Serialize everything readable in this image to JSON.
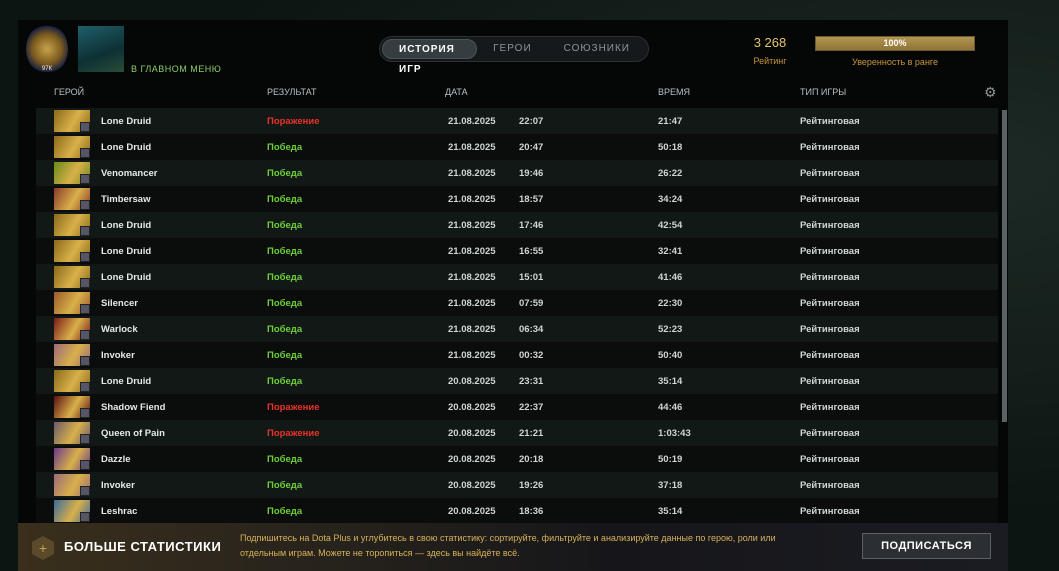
{
  "header": {
    "menu_link": "В ГЛАВНОМ МЕНЮ",
    "rank_number": "97К",
    "tabs": [
      {
        "label": "ИСТОРИЯ ИГР",
        "active": true
      },
      {
        "label": "ГЕРОИ",
        "active": false
      },
      {
        "label": "СОЮЗНИКИ",
        "active": false
      }
    ],
    "rating_value": "3 268",
    "rating_label": "Рейтинг",
    "confidence_percent": 100,
    "confidence_text": "100%",
    "confidence_label": "Уверенность в ранге"
  },
  "columns": {
    "hero": "ГЕРОЙ",
    "result": "РЕЗУЛЬТАТ",
    "date": "ДАТА",
    "duration": "ВРЕМЯ",
    "type": "ТИП ИГРЫ"
  },
  "colors": {
    "win": "#6fcf3a",
    "loss": "#e8332a",
    "accent": "#c9953c"
  },
  "matches": [
    {
      "hero": "Lone Druid",
      "result": "Поражение",
      "win": false,
      "date": "21.08.2025",
      "time": "22:07",
      "duration": "21:47",
      "type": "Рейтинговая",
      "c": "#8a6a1a"
    },
    {
      "hero": "Lone Druid",
      "result": "Победа",
      "win": true,
      "date": "21.08.2025",
      "time": "20:47",
      "duration": "50:18",
      "type": "Рейтинговая",
      "c": "#8a6a1a"
    },
    {
      "hero": "Venomancer",
      "result": "Победа",
      "win": true,
      "date": "21.08.2025",
      "time": "19:46",
      "duration": "26:22",
      "type": "Рейтинговая",
      "c": "#6a8a1a"
    },
    {
      "hero": "Timbersaw",
      "result": "Победа",
      "win": true,
      "date": "21.08.2025",
      "time": "18:57",
      "duration": "34:24",
      "type": "Рейтинговая",
      "c": "#8a3a2a"
    },
    {
      "hero": "Lone Druid",
      "result": "Победа",
      "win": true,
      "date": "21.08.2025",
      "time": "17:46",
      "duration": "42:54",
      "type": "Рейтинговая",
      "c": "#8a6a1a"
    },
    {
      "hero": "Lone Druid",
      "result": "Победа",
      "win": true,
      "date": "21.08.2025",
      "time": "16:55",
      "duration": "32:41",
      "type": "Рейтинговая",
      "c": "#8a6a1a"
    },
    {
      "hero": "Lone Druid",
      "result": "Победа",
      "win": true,
      "date": "21.08.2025",
      "time": "15:01",
      "duration": "41:46",
      "type": "Рейтинговая",
      "c": "#8a6a1a"
    },
    {
      "hero": "Silencer",
      "result": "Победа",
      "win": true,
      "date": "21.08.2025",
      "time": "07:59",
      "duration": "22:30",
      "type": "Рейтинговая",
      "c": "#9a5a2a"
    },
    {
      "hero": "Warlock",
      "result": "Победа",
      "win": true,
      "date": "21.08.2025",
      "time": "06:34",
      "duration": "52:23",
      "type": "Рейтинговая",
      "c": "#7a1a1a"
    },
    {
      "hero": "Invoker",
      "result": "Победа",
      "win": true,
      "date": "21.08.2025",
      "time": "00:32",
      "duration": "50:40",
      "type": "Рейтинговая",
      "c": "#9a6a7a"
    },
    {
      "hero": "Lone Druid",
      "result": "Победа",
      "win": true,
      "date": "20.08.2025",
      "time": "23:31",
      "duration": "35:14",
      "type": "Рейтинговая",
      "c": "#8a6a1a"
    },
    {
      "hero": "Shadow Fiend",
      "result": "Поражение",
      "win": false,
      "date": "20.08.2025",
      "time": "22:37",
      "duration": "44:46",
      "type": "Рейтинговая",
      "c": "#5a1010"
    },
    {
      "hero": "Queen of Pain",
      "result": "Поражение",
      "win": false,
      "date": "20.08.2025",
      "time": "21:21",
      "duration": "1:03:43",
      "type": "Рейтинговая",
      "c": "#6a5a6a"
    },
    {
      "hero": "Dazzle",
      "result": "Победа",
      "win": true,
      "date": "20.08.2025",
      "time": "20:18",
      "duration": "50:19",
      "type": "Рейтинговая",
      "c": "#6a3a8a"
    },
    {
      "hero": "Invoker",
      "result": "Победа",
      "win": true,
      "date": "20.08.2025",
      "time": "19:26",
      "duration": "37:18",
      "type": "Рейтинговая",
      "c": "#9a6a7a"
    },
    {
      "hero": "Leshrac",
      "result": "Победа",
      "win": true,
      "date": "20.08.2025",
      "time": "18:36",
      "duration": "35:14",
      "type": "Рейтинговая",
      "c": "#3a6a9a"
    }
  ],
  "promo": {
    "title": "БОЛЬШЕ СТАТИСТИКИ",
    "description": "Подпишитесь на Dota Plus и углубитесь в свою статистику: сортируйте, фильтруйте и анализируйте данные по герою, роли или отдельным играм. Можете не торопиться — здесь вы найдёте всё.",
    "button": "ПОДПИСАТЬСЯ"
  }
}
